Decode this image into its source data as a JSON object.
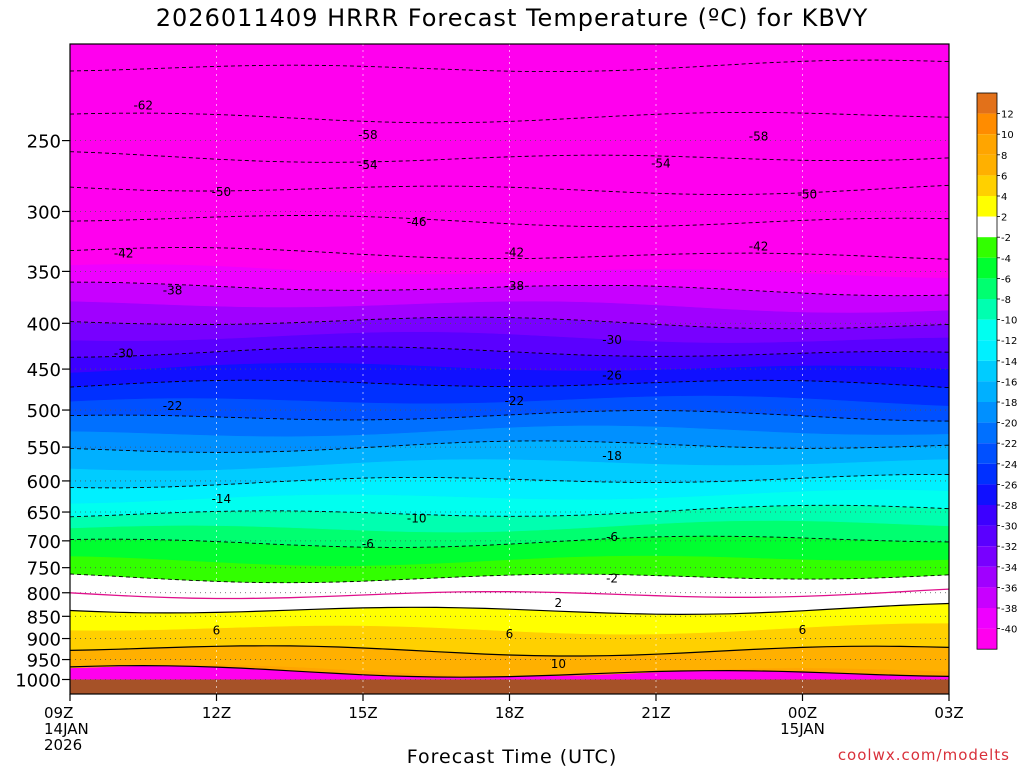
{
  "title": "2026011409 HRRR Forecast Temperature (ºC) for KBVY",
  "credit": "coolwx.com/modelts",
  "chart_data": {
    "type": "heatmap",
    "title": "2026011409 HRRR Forecast Temperature (ºC) for KBVY",
    "xlabel": "Forecast Time (UTC)",
    "ylabel": "",
    "x_ticks": [
      {
        "hour": 0,
        "lines": [
          "09Z",
          "14JAN",
          "2026"
        ]
      },
      {
        "hour": 3,
        "lines": [
          "12Z"
        ]
      },
      {
        "hour": 6,
        "lines": [
          "15Z"
        ]
      },
      {
        "hour": 9,
        "lines": [
          "18Z"
        ]
      },
      {
        "hour": 12,
        "lines": [
          "21Z"
        ]
      },
      {
        "hour": 15,
        "lines": [
          "00Z",
          "15JAN"
        ]
      },
      {
        "hour": 18,
        "lines": [
          "03Z"
        ]
      }
    ],
    "x_range_hours": [
      0,
      18
    ],
    "y_ticks": [
      250,
      300,
      350,
      400,
      450,
      500,
      550,
      600,
      650,
      700,
      750,
      800,
      850,
      900,
      950,
      1000
    ],
    "y_range_hPa": [
      1038,
      195
    ],
    "y_scale": "log-pressure",
    "colorbar": {
      "labels": [
        "12",
        "10",
        "8",
        "6",
        "4",
        "2",
        "-2",
        "-4",
        "-6",
        "-8",
        "-10",
        "-12",
        "-14",
        "-16",
        "-18",
        "-20",
        "-22",
        "-24",
        "-26",
        "-28",
        "-30",
        "-32",
        "-34",
        "-36",
        "-38",
        "-40"
      ],
      "bins": [
        {
          "lo": 12,
          "hi": 14,
          "color": "#e2711a"
        },
        {
          "lo": 10,
          "hi": 12,
          "color": "#ff8c00"
        },
        {
          "lo": 8,
          "hi": 10,
          "color": "#ffa500"
        },
        {
          "lo": 6,
          "hi": 8,
          "color": "#ffb000"
        },
        {
          "lo": 4,
          "hi": 6,
          "color": "#ffd000"
        },
        {
          "lo": 2,
          "hi": 4,
          "color": "#ffff00"
        },
        {
          "lo": -2,
          "hi": 2,
          "color": "#ffffff"
        },
        {
          "lo": -4,
          "hi": -2,
          "color": "#32ff00"
        },
        {
          "lo": -6,
          "hi": -4,
          "color": "#00ff30"
        },
        {
          "lo": -8,
          "hi": -6,
          "color": "#00ff70"
        },
        {
          "lo": -10,
          "hi": -8,
          "color": "#00ffb0"
        },
        {
          "lo": -12,
          "hi": -10,
          "color": "#00fff0"
        },
        {
          "lo": -14,
          "hi": -12,
          "color": "#00f0ff"
        },
        {
          "lo": -16,
          "hi": -14,
          "color": "#00ccff"
        },
        {
          "lo": -18,
          "hi": -16,
          "color": "#00b0ff"
        },
        {
          "lo": -20,
          "hi": -18,
          "color": "#0090ff"
        },
        {
          "lo": -22,
          "hi": -20,
          "color": "#0070ff"
        },
        {
          "lo": -24,
          "hi": -22,
          "color": "#0050ff"
        },
        {
          "lo": -26,
          "hi": -24,
          "color": "#0030ff"
        },
        {
          "lo": -28,
          "hi": -26,
          "color": "#1010ff"
        },
        {
          "lo": -30,
          "hi": -28,
          "color": "#3c00ff"
        },
        {
          "lo": -32,
          "hi": -30,
          "color": "#5a00ff"
        },
        {
          "lo": -34,
          "hi": -32,
          "color": "#7800ff"
        },
        {
          "lo": -36,
          "hi": -34,
          "color": "#a000ff"
        },
        {
          "lo": -38,
          "hi": -36,
          "color": "#c800ff"
        },
        {
          "lo": -40,
          "hi": -38,
          "color": "#ee00ff"
        },
        {
          "lo": -70,
          "hi": -40,
          "color": "#ff00ee"
        }
      ]
    },
    "ground_color": "#a65228",
    "ground_pressure_hPa": 1000,
    "isotherm_profile": {
      "pressure_hPa": [
        1000,
        950,
        900,
        850,
        800,
        750,
        700,
        650,
        600,
        550,
        500,
        450,
        400,
        350,
        300,
        250,
        200
      ],
      "temperature_C": [
        9,
        7,
        5,
        3,
        0,
        -3,
        -6,
        -10,
        -14,
        -18,
        -23,
        -28,
        -34,
        -40,
        -47,
        -56,
        -63
      ]
    },
    "contour_labels": [
      {
        "value": "-62",
        "hour": 1.5,
        "p": 228
      },
      {
        "value": "-58",
        "hour": 6.1,
        "p": 246
      },
      {
        "value": "-58",
        "hour": 14.1,
        "p": 247
      },
      {
        "value": "-54",
        "hour": 6.1,
        "p": 266
      },
      {
        "value": "-54",
        "hour": 12.1,
        "p": 265
      },
      {
        "value": "-50",
        "hour": 3.1,
        "p": 285
      },
      {
        "value": "-50",
        "hour": 15.1,
        "p": 287
      },
      {
        "value": "-46",
        "hour": 7.1,
        "p": 308
      },
      {
        "value": "-42",
        "hour": 1.1,
        "p": 334
      },
      {
        "value": "-42",
        "hour": 9.1,
        "p": 333
      },
      {
        "value": "-42",
        "hour": 14.1,
        "p": 328
      },
      {
        "value": "-38",
        "hour": 2.1,
        "p": 367
      },
      {
        "value": "-38",
        "hour": 9.1,
        "p": 363
      },
      {
        "value": "-30",
        "hour": 1.1,
        "p": 432
      },
      {
        "value": "-30",
        "hour": 11.1,
        "p": 417
      },
      {
        "value": "-26",
        "hour": 11.1,
        "p": 457
      },
      {
        "value": "-22",
        "hour": 2.1,
        "p": 494
      },
      {
        "value": "-22",
        "hour": 9.1,
        "p": 488
      },
      {
        "value": "-18",
        "hour": 11.1,
        "p": 562
      },
      {
        "value": "-14",
        "hour": 3.1,
        "p": 628
      },
      {
        "value": "-10",
        "hour": 7.1,
        "p": 660
      },
      {
        "value": "-6",
        "hour": 6.1,
        "p": 705
      },
      {
        "value": "-6",
        "hour": 11.1,
        "p": 692
      },
      {
        "value": "-2",
        "hour": 11.1,
        "p": 770
      },
      {
        "value": "2",
        "hour": 10.0,
        "p": 820
      },
      {
        "value": "6",
        "hour": 3.0,
        "p": 880
      },
      {
        "value": "6",
        "hour": 9.0,
        "p": 888
      },
      {
        "value": "6",
        "hour": 15.0,
        "p": 879
      },
      {
        "value": "10",
        "hour": 10.0,
        "p": 960
      }
    ]
  }
}
